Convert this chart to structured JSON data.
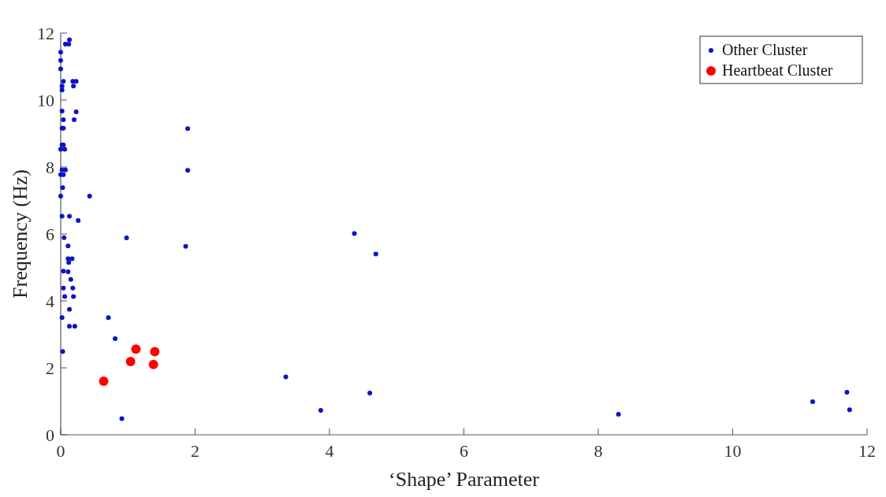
{
  "chart_data": {
    "type": "scatter",
    "xlabel": "‘Shape’ Parameter",
    "ylabel": "Frequency (Hz)",
    "xlim": [
      0,
      12
    ],
    "ylim": [
      0,
      12
    ],
    "xticks": [
      0,
      2,
      4,
      6,
      8,
      10,
      12
    ],
    "yticks": [
      0,
      2,
      4,
      6,
      8,
      10,
      12
    ],
    "grid": false,
    "legend": "top right",
    "marker": "circle",
    "series": [
      {
        "name": "Other Cluster",
        "color": "#0a14c8",
        "x": [
          0.13,
          0.07,
          0.12,
          0,
          0,
          0,
          0.04,
          0.02,
          0.02,
          0.18,
          0.23,
          0.19,
          0.02,
          0.23,
          0.04,
          0.2,
          0.02,
          0.04,
          0.02,
          0.04,
          0,
          0.06,
          0.02,
          0.07,
          0,
          0.04,
          0.03,
          0,
          0.43,
          0.02,
          0.13,
          0.26,
          1.89,
          1.89,
          0.05,
          0.98,
          1.86,
          0.11,
          0.11,
          0.17,
          0.12,
          0.04,
          0.11,
          0.15,
          0.04,
          0.18,
          0.06,
          0.19,
          0.13,
          0.02,
          0.13,
          0.21,
          0.03,
          0.71,
          0.81,
          0.91,
          4.37,
          4.69,
          3.35,
          4.6,
          3.87,
          8.3,
          11.19,
          11.7,
          11.74
        ],
        "values": [
          11.8,
          11.67,
          11.67,
          11.43,
          11.18,
          10.93,
          10.56,
          10.42,
          10.3,
          10.56,
          10.56,
          10.42,
          9.67,
          9.65,
          9.41,
          9.41,
          9.16,
          9.16,
          8.66,
          8.66,
          8.53,
          8.53,
          7.91,
          7.91,
          7.77,
          7.77,
          7.38,
          7.13,
          7.13,
          6.53,
          6.53,
          6.4,
          9.15,
          7.9,
          5.89,
          5.88,
          5.63,
          5.64,
          5.26,
          5.26,
          5.15,
          4.89,
          4.87,
          4.64,
          4.38,
          4.38,
          4.13,
          4.13,
          3.75,
          3.5,
          3.24,
          3.24,
          2.49,
          3.5,
          2.87,
          0.48,
          6.01,
          5.4,
          1.73,
          1.25,
          0.73,
          0.61,
          0.99,
          1.27,
          0.75
        ]
      },
      {
        "name": "Heartbeat Cluster",
        "color": "#ff0000",
        "x": [
          0.64,
          1.04,
          1.12,
          1.38,
          1.4
        ],
        "values": [
          1.6,
          2.19,
          2.56,
          2.1,
          2.48
        ]
      }
    ]
  }
}
